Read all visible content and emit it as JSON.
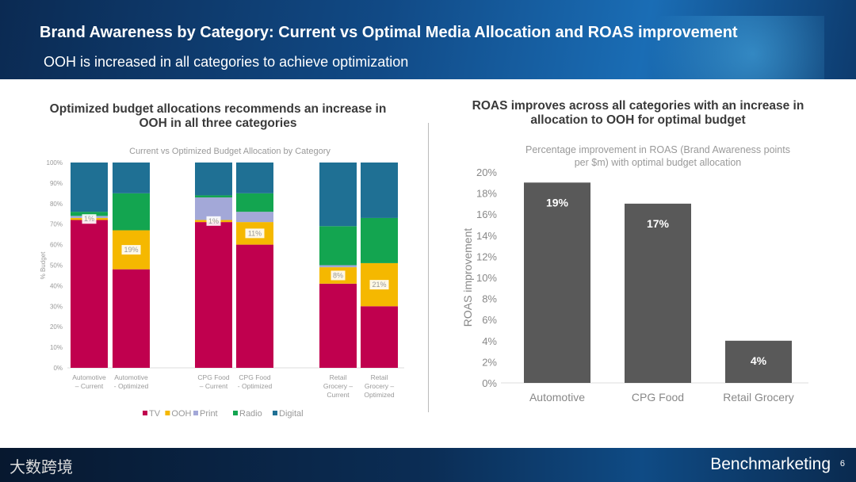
{
  "header": {
    "title": "Brand Awareness by Category: Current vs Optimal Media Allocation and ROAS improvement",
    "subtitle": "OOH is increased in all categories to achieve optimization"
  },
  "left_panel": {
    "heading": "Optimized budget allocations recommends an increase in OOH in all three categories"
  },
  "right_panel": {
    "heading": "ROAS improves across all categories with an increase in allocation to OOH for optimal budget"
  },
  "footer": {
    "left_logo": "大数跨境",
    "brand": "Benchmarketing",
    "page": "6"
  },
  "chart_data": [
    {
      "type": "bar",
      "stacked": true,
      "title": "Current vs Optimized Budget Allocation by Category",
      "ylabel": "% Budget",
      "ylim": [
        0,
        100
      ],
      "yticks": [
        "0%",
        "10%",
        "20%",
        "30%",
        "40%",
        "50%",
        "60%",
        "70%",
        "80%",
        "90%",
        "100%"
      ],
      "categories": [
        "Automotive – Current",
        "Automotive - Optimized",
        "CPG Food – Current",
        "CPG Food - Optimized",
        "Retail Grocery – Current",
        "Retail Grocery – Optimized"
      ],
      "series": [
        {
          "name": "TV",
          "color": "#c0004e",
          "values": [
            72,
            48,
            71,
            60,
            41,
            30
          ]
        },
        {
          "name": "OOH",
          "color": "#f5b800",
          "values": [
            1,
            19,
            1,
            11,
            8,
            21
          ]
        },
        {
          "name": "Print",
          "color": "#a3a8d8",
          "values": [
            1,
            0,
            11,
            5,
            1,
            0
          ]
        },
        {
          "name": "Radio",
          "color": "#13a550",
          "values": [
            2,
            18,
            1,
            9,
            19,
            22
          ]
        },
        {
          "name": "Digital",
          "color": "#1f7094",
          "values": [
            24,
            15,
            16,
            15,
            31,
            27
          ]
        }
      ],
      "data_labels": [
        "1%",
        "19%",
        "1%",
        "11%",
        "8%",
        "21%"
      ],
      "legend": "bottom"
    },
    {
      "type": "bar",
      "title": "Percentage improvement in ROAS (Brand Awareness points per $m) with optimal budget allocation",
      "title_lines": [
        "Percentage improvement in ROAS (Brand Awareness points",
        "per $m) with optimal budget allocation"
      ],
      "ylabel": "ROAS improvement",
      "ylim": [
        0,
        20
      ],
      "yticks": [
        "0%",
        "2%",
        "4%",
        "6%",
        "8%",
        "10%",
        "12%",
        "14%",
        "16%",
        "18%",
        "20%"
      ],
      "categories": [
        "Automotive",
        "CPG Food",
        "Retail Grocery"
      ],
      "values": [
        19,
        17,
        4
      ],
      "data_labels": [
        "19%",
        "17%",
        "4%"
      ],
      "color": "#595959"
    }
  ]
}
